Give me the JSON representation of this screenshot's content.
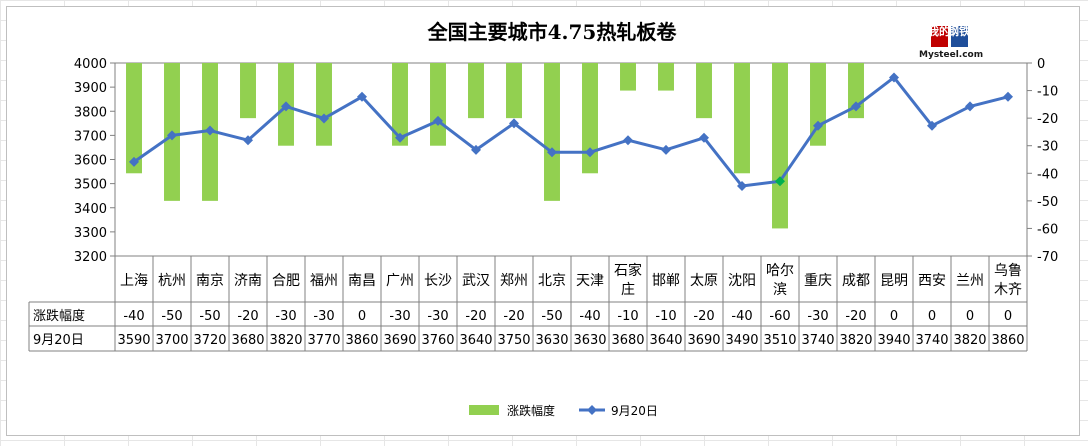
{
  "chart_data": {
    "type": "bar+line",
    "title": "全国主要城市4.75热轧板卷",
    "categories": [
      [
        "上海"
      ],
      [
        "杭州"
      ],
      [
        "南京"
      ],
      [
        "济南"
      ],
      [
        "合肥"
      ],
      [
        "福州"
      ],
      [
        "南昌"
      ],
      [
        "广州"
      ],
      [
        "长沙"
      ],
      [
        "武汉"
      ],
      [
        "郑州"
      ],
      [
        "北京"
      ],
      [
        "天津"
      ],
      [
        "石家",
        "庄"
      ],
      [
        "邯郸"
      ],
      [
        "太原"
      ],
      [
        "沈阳"
      ],
      [
        "哈尔",
        "滨"
      ],
      [
        "重庆"
      ],
      [
        "成都"
      ],
      [
        "昆明"
      ],
      [
        "西安"
      ],
      [
        "兰州"
      ],
      [
        "乌鲁",
        "木齐"
      ]
    ],
    "series": [
      {
        "name": "涨跌幅度",
        "type": "bar",
        "axis": "right",
        "color": "#92d050",
        "values": [
          -40,
          -50,
          -50,
          -20,
          -30,
          -30,
          0,
          -30,
          -30,
          -20,
          -20,
          -50,
          -40,
          -10,
          -10,
          -20,
          -40,
          -60,
          -30,
          -20,
          0,
          0,
          0,
          0
        ]
      },
      {
        "name": "9月20日",
        "type": "line",
        "axis": "left",
        "color": "#4472c4",
        "highlight_color": "#00b050",
        "highlight_index": 17,
        "values": [
          3590,
          3700,
          3720,
          3680,
          3820,
          3770,
          3860,
          3690,
          3760,
          3640,
          3750,
          3630,
          3630,
          3680,
          3640,
          3690,
          3490,
          3510,
          3740,
          3820,
          3940,
          3740,
          3820,
          3860
        ]
      }
    ],
    "y_left": {
      "min": 3200,
      "max": 4000,
      "step": 100
    },
    "y_right": {
      "min": -70,
      "max": 0,
      "step": 10
    },
    "legend": {
      "position": "bottom"
    },
    "grid": false
  },
  "logo": {
    "cn": [
      "我的",
      "钢铁"
    ],
    "en": "Mysteel.com"
  }
}
